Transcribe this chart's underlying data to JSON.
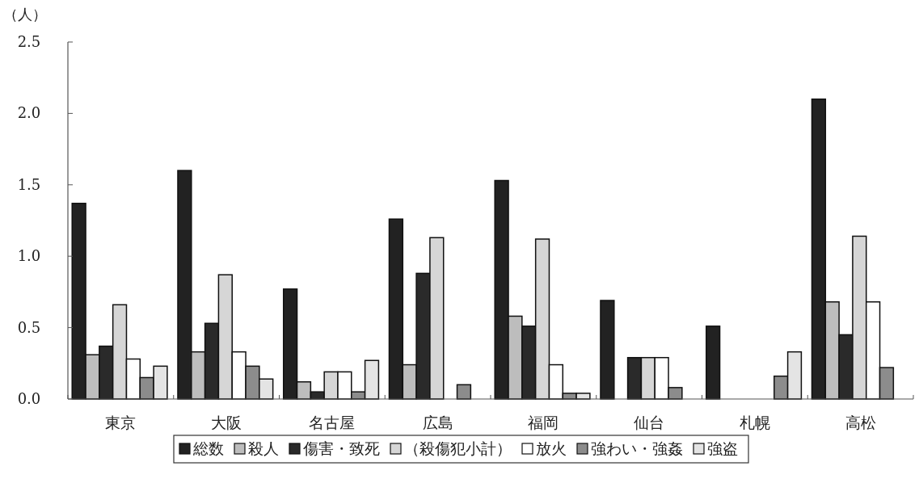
{
  "chart_data": {
    "type": "bar",
    "ylabel": "（人）",
    "categories": [
      "東京",
      "大阪",
      "名古屋",
      "広島",
      "福岡",
      "仙台",
      "札幌",
      "高松"
    ],
    "series": [
      {
        "name": "総数",
        "color": "#222222",
        "values": [
          1.37,
          1.6,
          0.77,
          1.26,
          1.53,
          0.69,
          0.51,
          2.1
        ]
      },
      {
        "name": "殺人",
        "color": "#bdbdbd",
        "values": [
          0.31,
          0.33,
          0.12,
          0.24,
          0.58,
          0,
          0,
          0.68
        ]
      },
      {
        "name": "傷害・致死",
        "color": "#2a2a2a",
        "values": [
          0.37,
          0.53,
          0.05,
          0.88,
          0.51,
          0.29,
          0,
          0.45
        ]
      },
      {
        "name": "（殺傷犯小計）",
        "color": "#d6d6d6",
        "values": [
          0.66,
          0.87,
          0.19,
          1.13,
          1.12,
          0.29,
          0,
          1.14
        ]
      },
      {
        "name": "放火",
        "color": "#ffffff",
        "values": [
          0.28,
          0.33,
          0.19,
          0,
          0.24,
          0.29,
          0,
          0.68
        ]
      },
      {
        "name": "強わい・強姦",
        "color": "#8c8c8c",
        "values": [
          0.15,
          0.23,
          0.05,
          0.1,
          0.04,
          0.08,
          0.16,
          0.22
        ]
      },
      {
        "name": "強盗",
        "color": "#e4e4e4",
        "values": [
          0.23,
          0.14,
          0.27,
          0,
          0.04,
          0,
          0.33,
          0
        ]
      }
    ],
    "ylim": [
      0,
      2.5
    ],
    "yticks": [
      {
        "value": 0,
        "label": "0.0"
      },
      {
        "value": 0.5,
        "label": "0.5"
      },
      {
        "value": 1,
        "label": "1.0"
      },
      {
        "value": 1.5,
        "label": "1.5"
      },
      {
        "value": 2,
        "label": "2.0"
      },
      {
        "value": 2.5,
        "label": "2.5"
      }
    ],
    "grid": false,
    "legend": "bottom"
  }
}
